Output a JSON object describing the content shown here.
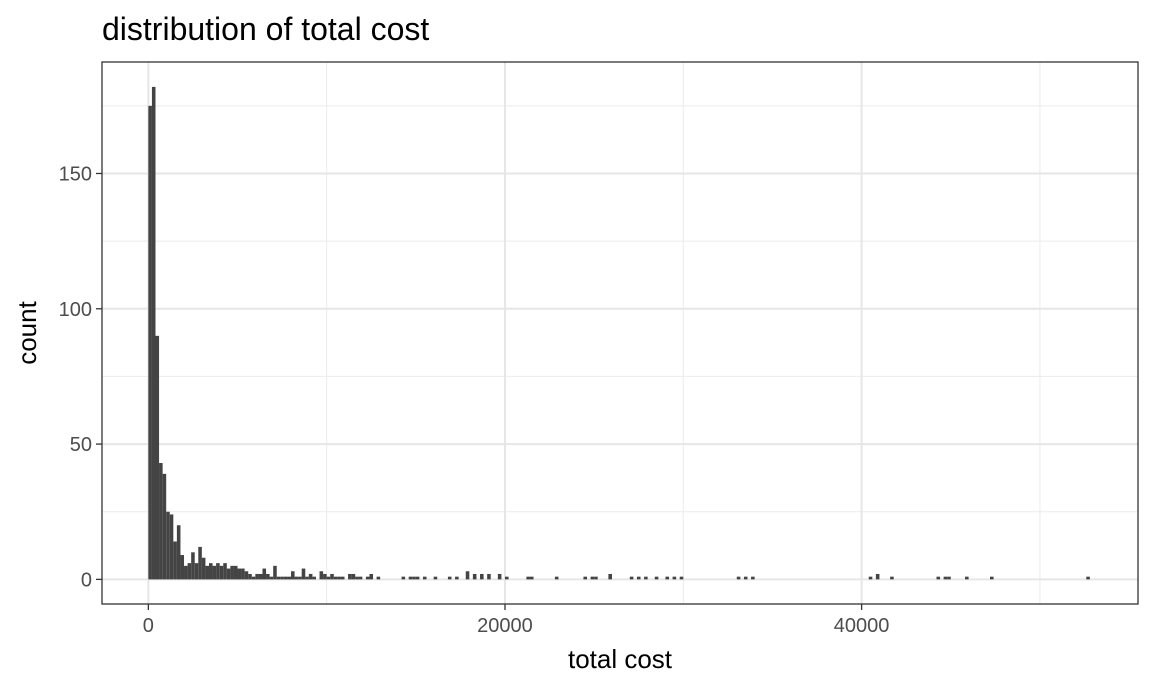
{
  "chart_data": {
    "type": "bar",
    "title": "distribution of total cost",
    "xlabel": "total cost",
    "ylabel": "count",
    "xlim": [
      -2600,
      55500
    ],
    "ylim": [
      -9.1,
      191.2
    ],
    "x_ticks": [
      0,
      20000,
      40000
    ],
    "x_tick_labels": [
      "0",
      "20000",
      "40000"
    ],
    "y_ticks": [
      0,
      50,
      100,
      150
    ],
    "y_tick_labels": [
      "0",
      "50",
      "100",
      "150"
    ],
    "grid": true,
    "legend": "none",
    "bin_width": 200,
    "bar_color": "#444444",
    "series": [
      {
        "bins": [
          [
            0,
            175
          ],
          [
            200,
            182
          ],
          [
            400,
            90
          ],
          [
            600,
            43
          ],
          [
            800,
            39
          ],
          [
            1000,
            25
          ],
          [
            1200,
            24
          ],
          [
            1400,
            14
          ],
          [
            1600,
            20
          ],
          [
            1800,
            9
          ],
          [
            2000,
            5
          ],
          [
            2200,
            6
          ],
          [
            2400,
            10
          ],
          [
            2600,
            6
          ],
          [
            2800,
            12
          ],
          [
            3000,
            8
          ],
          [
            3200,
            5
          ],
          [
            3400,
            6
          ],
          [
            3600,
            5
          ],
          [
            3800,
            6
          ],
          [
            4000,
            5
          ],
          [
            4200,
            6
          ],
          [
            4400,
            4
          ],
          [
            4600,
            5
          ],
          [
            4800,
            5
          ],
          [
            5000,
            4
          ],
          [
            5200,
            4
          ],
          [
            5400,
            3
          ],
          [
            5600,
            2
          ],
          [
            5800,
            1
          ],
          [
            6000,
            2
          ],
          [
            6200,
            2
          ],
          [
            6400,
            4
          ],
          [
            6600,
            2
          ],
          [
            6800,
            1
          ],
          [
            7000,
            5
          ],
          [
            7200,
            1
          ],
          [
            7400,
            1
          ],
          [
            7600,
            1
          ],
          [
            7800,
            1
          ],
          [
            8000,
            3
          ],
          [
            8200,
            1
          ],
          [
            8400,
            1
          ],
          [
            8600,
            4
          ],
          [
            8800,
            1
          ],
          [
            9000,
            2
          ],
          [
            9200,
            1
          ],
          [
            9600,
            3
          ],
          [
            9800,
            2
          ],
          [
            10000,
            1
          ],
          [
            10200,
            2
          ],
          [
            10400,
            1
          ],
          [
            10600,
            1
          ],
          [
            10800,
            1
          ],
          [
            11200,
            2
          ],
          [
            11400,
            2
          ],
          [
            11600,
            1
          ],
          [
            11800,
            1
          ],
          [
            12200,
            1
          ],
          [
            12400,
            2
          ],
          [
            12800,
            1
          ],
          [
            14200,
            1
          ],
          [
            14600,
            1
          ],
          [
            14800,
            1
          ],
          [
            15000,
            1
          ],
          [
            15400,
            1
          ],
          [
            16000,
            1
          ],
          [
            16800,
            1
          ],
          [
            17200,
            1
          ],
          [
            17800,
            3
          ],
          [
            18200,
            2
          ],
          [
            18600,
            2
          ],
          [
            19000,
            2
          ],
          [
            19600,
            2
          ],
          [
            20000,
            1
          ],
          [
            21200,
            1
          ],
          [
            21400,
            1
          ],
          [
            22800,
            1
          ],
          [
            24400,
            1
          ],
          [
            24800,
            1
          ],
          [
            25000,
            1
          ],
          [
            25800,
            2
          ],
          [
            27000,
            1
          ],
          [
            27400,
            1
          ],
          [
            27800,
            1
          ],
          [
            28400,
            1
          ],
          [
            29000,
            1
          ],
          [
            29400,
            1
          ],
          [
            29800,
            1
          ],
          [
            33000,
            1
          ],
          [
            33400,
            1
          ],
          [
            33800,
            1
          ],
          [
            40400,
            1
          ],
          [
            40800,
            2
          ],
          [
            41600,
            1
          ],
          [
            44200,
            1
          ],
          [
            44600,
            1
          ],
          [
            44800,
            1
          ],
          [
            45800,
            1
          ],
          [
            47200,
            1
          ],
          [
            52600,
            1
          ]
        ]
      }
    ]
  }
}
